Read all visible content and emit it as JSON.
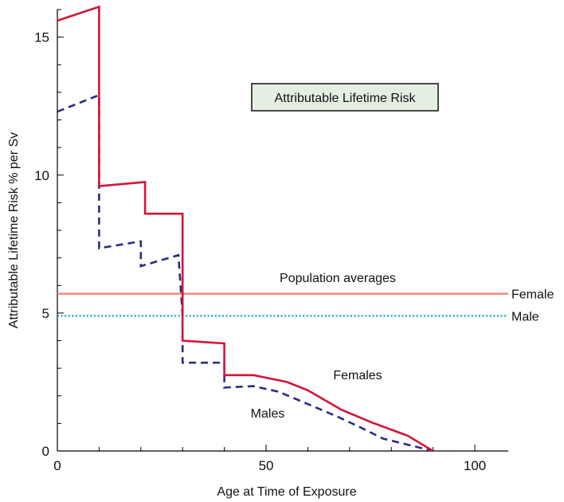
{
  "chart_data": {
    "type": "line",
    "title": "",
    "xlabel": "Age at Time of Exposure",
    "ylabel": "Attributable Lifetime Risk % per Sv",
    "xlim": [
      0,
      108
    ],
    "ylim": [
      0,
      16
    ],
    "xticks": [
      0,
      50,
      100
    ],
    "yticks": [
      0,
      5,
      10,
      15
    ],
    "grid": false,
    "legend_box_label": "Attributable Lifetime Risk",
    "colors": {
      "females": "#d2143a",
      "males": "#2b2b8a",
      "pop_female": "#f08070",
      "pop_male": "#1aa6c0"
    },
    "series": [
      {
        "name": "Females",
        "style": "solid",
        "x": [
          0,
          10,
          10,
          21,
          21,
          30,
          30,
          40,
          40,
          47,
          55,
          60,
          68,
          75,
          84,
          90
        ],
        "y": [
          15.6,
          16.1,
          9.6,
          9.75,
          8.6,
          8.6,
          4.0,
          3.9,
          2.75,
          2.75,
          2.5,
          2.2,
          1.5,
          1.05,
          0.55,
          0.0
        ]
      },
      {
        "name": "Males",
        "style": "dashed",
        "x": [
          0,
          10,
          10,
          20,
          20,
          29,
          30,
          30,
          40,
          40,
          47,
          53,
          60,
          67,
          72,
          78,
          90
        ],
        "y": [
          12.3,
          12.9,
          7.35,
          7.6,
          6.7,
          7.1,
          4.9,
          3.2,
          3.2,
          2.3,
          2.35,
          2.15,
          1.7,
          1.25,
          0.9,
          0.45,
          0.0
        ]
      }
    ],
    "reference_lines": [
      {
        "name": "Female",
        "y": 5.7,
        "style": "solid"
      },
      {
        "name": "Male",
        "y": 4.9,
        "style": "dotted"
      }
    ],
    "annotations": {
      "population_averages": "Population averages",
      "females_label": "Females",
      "males_label": "Males"
    }
  }
}
